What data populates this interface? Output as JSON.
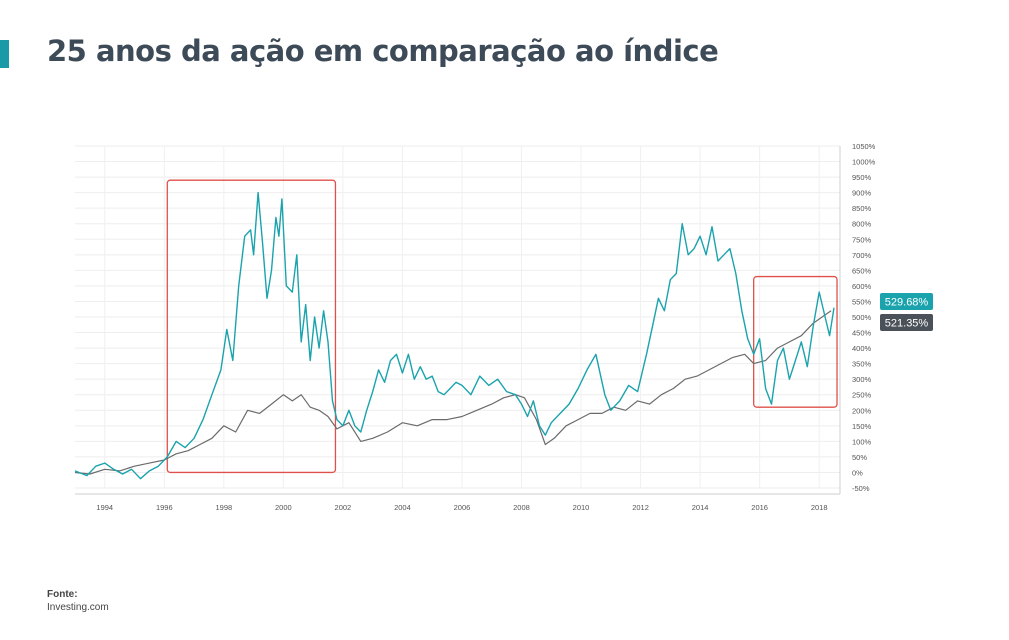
{
  "title": "25 anos da ação em comparação ao índice",
  "source": {
    "label": "Fonte:",
    "value": "Investing.com"
  },
  "colors": {
    "accent": "#1a9aa6",
    "stock": "#1aa3ad",
    "index": "#6b6b6b",
    "highlight": "#e0504a",
    "badge_index": "#4a5158"
  },
  "chart_data": {
    "type": "line",
    "y_unit": "%",
    "xlim": [
      1993,
      2018.7
    ],
    "ylim": [
      -50,
      1050
    ],
    "x_ticks": [
      "1994",
      "1996",
      "1998",
      "2000",
      "2002",
      "2004",
      "2006",
      "2008",
      "2010",
      "2012",
      "2014",
      "2016",
      "2018"
    ],
    "y_ticks": [
      "1050%",
      "1000%",
      "950%",
      "900%",
      "850%",
      "800%",
      "750%",
      "700%",
      "650%",
      "600%",
      "550%",
      "500%",
      "450%",
      "400%",
      "350%",
      "300%",
      "250%",
      "200%",
      "150%",
      "100%",
      "50%",
      "0%",
      "-50%"
    ],
    "grid": true,
    "series": [
      {
        "key": "stock",
        "color": "#1aa3ad",
        "last_value_label": "529.68%",
        "points": [
          [
            1993.0,
            5
          ],
          [
            1993.4,
            -10
          ],
          [
            1993.7,
            20
          ],
          [
            1994.0,
            30
          ],
          [
            1994.3,
            10
          ],
          [
            1994.6,
            -5
          ],
          [
            1994.9,
            10
          ],
          [
            1995.2,
            -20
          ],
          [
            1995.5,
            5
          ],
          [
            1995.8,
            20
          ],
          [
            1996.1,
            50
          ],
          [
            1996.4,
            100
          ],
          [
            1996.7,
            80
          ],
          [
            1997.0,
            110
          ],
          [
            1997.3,
            170
          ],
          [
            1997.6,
            250
          ],
          [
            1997.9,
            330
          ],
          [
            1998.1,
            460
          ],
          [
            1998.3,
            360
          ],
          [
            1998.5,
            600
          ],
          [
            1998.7,
            760
          ],
          [
            1998.9,
            780
          ],
          [
            1999.0,
            700
          ],
          [
            1999.15,
            900
          ],
          [
            1999.3,
            740
          ],
          [
            1999.45,
            560
          ],
          [
            1999.6,
            650
          ],
          [
            1999.75,
            820
          ],
          [
            1999.85,
            760
          ],
          [
            1999.95,
            880
          ],
          [
            2000.1,
            600
          ],
          [
            2000.3,
            580
          ],
          [
            2000.45,
            700
          ],
          [
            2000.6,
            420
          ],
          [
            2000.75,
            540
          ],
          [
            2000.9,
            360
          ],
          [
            2001.05,
            500
          ],
          [
            2001.2,
            400
          ],
          [
            2001.35,
            520
          ],
          [
            2001.5,
            420
          ],
          [
            2001.65,
            230
          ],
          [
            2001.8,
            170
          ],
          [
            2002.0,
            150
          ],
          [
            2002.2,
            200
          ],
          [
            2002.4,
            150
          ],
          [
            2002.6,
            130
          ],
          [
            2002.8,
            200
          ],
          [
            2003.0,
            260
          ],
          [
            2003.2,
            330
          ],
          [
            2003.4,
            290
          ],
          [
            2003.6,
            360
          ],
          [
            2003.8,
            380
          ],
          [
            2004.0,
            320
          ],
          [
            2004.2,
            380
          ],
          [
            2004.4,
            300
          ],
          [
            2004.6,
            340
          ],
          [
            2004.8,
            300
          ],
          [
            2005.0,
            310
          ],
          [
            2005.2,
            260
          ],
          [
            2005.4,
            250
          ],
          [
            2005.6,
            270
          ],
          [
            2005.8,
            290
          ],
          [
            2006.0,
            280
          ],
          [
            2006.3,
            250
          ],
          [
            2006.6,
            310
          ],
          [
            2006.9,
            280
          ],
          [
            2007.2,
            300
          ],
          [
            2007.5,
            260
          ],
          [
            2007.8,
            250
          ],
          [
            2008.0,
            220
          ],
          [
            2008.2,
            180
          ],
          [
            2008.4,
            230
          ],
          [
            2008.6,
            150
          ],
          [
            2008.8,
            120
          ],
          [
            2009.0,
            160
          ],
          [
            2009.3,
            190
          ],
          [
            2009.6,
            220
          ],
          [
            2009.9,
            270
          ],
          [
            2010.2,
            330
          ],
          [
            2010.5,
            380
          ],
          [
            2010.8,
            250
          ],
          [
            2011.0,
            200
          ],
          [
            2011.3,
            230
          ],
          [
            2011.6,
            280
          ],
          [
            2011.9,
            260
          ],
          [
            2012.2,
            380
          ],
          [
            2012.4,
            470
          ],
          [
            2012.6,
            560
          ],
          [
            2012.8,
            520
          ],
          [
            2013.0,
            620
          ],
          [
            2013.2,
            640
          ],
          [
            2013.4,
            800
          ],
          [
            2013.6,
            700
          ],
          [
            2013.8,
            720
          ],
          [
            2014.0,
            760
          ],
          [
            2014.2,
            700
          ],
          [
            2014.4,
            790
          ],
          [
            2014.6,
            680
          ],
          [
            2014.8,
            700
          ],
          [
            2015.0,
            720
          ],
          [
            2015.2,
            640
          ],
          [
            2015.4,
            520
          ],
          [
            2015.6,
            430
          ],
          [
            2015.8,
            380
          ],
          [
            2016.0,
            430
          ],
          [
            2016.2,
            270
          ],
          [
            2016.4,
            220
          ],
          [
            2016.6,
            360
          ],
          [
            2016.8,
            400
          ],
          [
            2017.0,
            300
          ],
          [
            2017.2,
            360
          ],
          [
            2017.4,
            420
          ],
          [
            2017.6,
            340
          ],
          [
            2017.8,
            470
          ],
          [
            2018.0,
            580
          ],
          [
            2018.2,
            500
          ],
          [
            2018.35,
            440
          ],
          [
            2018.5,
            530
          ]
        ]
      },
      {
        "key": "index",
        "color": "#6b6b6b",
        "last_value_label": "521.35%",
        "points": [
          [
            1993.0,
            0
          ],
          [
            1993.5,
            -5
          ],
          [
            1994.0,
            10
          ],
          [
            1994.5,
            5
          ],
          [
            1995.0,
            20
          ],
          [
            1995.5,
            30
          ],
          [
            1996.0,
            40
          ],
          [
            1996.4,
            60
          ],
          [
            1996.8,
            70
          ],
          [
            1997.2,
            90
          ],
          [
            1997.6,
            110
          ],
          [
            1998.0,
            150
          ],
          [
            1998.4,
            130
          ],
          [
            1998.8,
            200
          ],
          [
            1999.2,
            190
          ],
          [
            1999.6,
            220
          ],
          [
            2000.0,
            250
          ],
          [
            2000.3,
            230
          ],
          [
            2000.6,
            250
          ],
          [
            2000.9,
            210
          ],
          [
            2001.2,
            200
          ],
          [
            2001.5,
            180
          ],
          [
            2001.8,
            140
          ],
          [
            2002.2,
            160
          ],
          [
            2002.6,
            100
          ],
          [
            2003.0,
            110
          ],
          [
            2003.5,
            130
          ],
          [
            2004.0,
            160
          ],
          [
            2004.5,
            150
          ],
          [
            2005.0,
            170
          ],
          [
            2005.5,
            170
          ],
          [
            2006.0,
            180
          ],
          [
            2006.5,
            200
          ],
          [
            2007.0,
            220
          ],
          [
            2007.4,
            240
          ],
          [
            2007.8,
            250
          ],
          [
            2008.1,
            240
          ],
          [
            2008.5,
            170
          ],
          [
            2008.8,
            90
          ],
          [
            2009.1,
            110
          ],
          [
            2009.5,
            150
          ],
          [
            2009.9,
            170
          ],
          [
            2010.3,
            190
          ],
          [
            2010.7,
            190
          ],
          [
            2011.1,
            210
          ],
          [
            2011.5,
            200
          ],
          [
            2011.9,
            230
          ],
          [
            2012.3,
            220
          ],
          [
            2012.7,
            250
          ],
          [
            2013.1,
            270
          ],
          [
            2013.5,
            300
          ],
          [
            2013.9,
            310
          ],
          [
            2014.3,
            330
          ],
          [
            2014.7,
            350
          ],
          [
            2015.1,
            370
          ],
          [
            2015.5,
            380
          ],
          [
            2015.8,
            350
          ],
          [
            2016.2,
            360
          ],
          [
            2016.6,
            400
          ],
          [
            2017.0,
            420
          ],
          [
            2017.4,
            440
          ],
          [
            2017.8,
            480
          ],
          [
            2018.1,
            500
          ],
          [
            2018.4,
            520
          ]
        ]
      }
    ],
    "annotations": [
      {
        "type": "highlight-box",
        "x_range": [
          1996.1,
          2001.75
        ],
        "y_range": [
          0,
          940
        ]
      },
      {
        "type": "highlight-box",
        "x_range": [
          2015.8,
          2018.6
        ],
        "y_range": [
          210,
          630
        ]
      }
    ]
  }
}
